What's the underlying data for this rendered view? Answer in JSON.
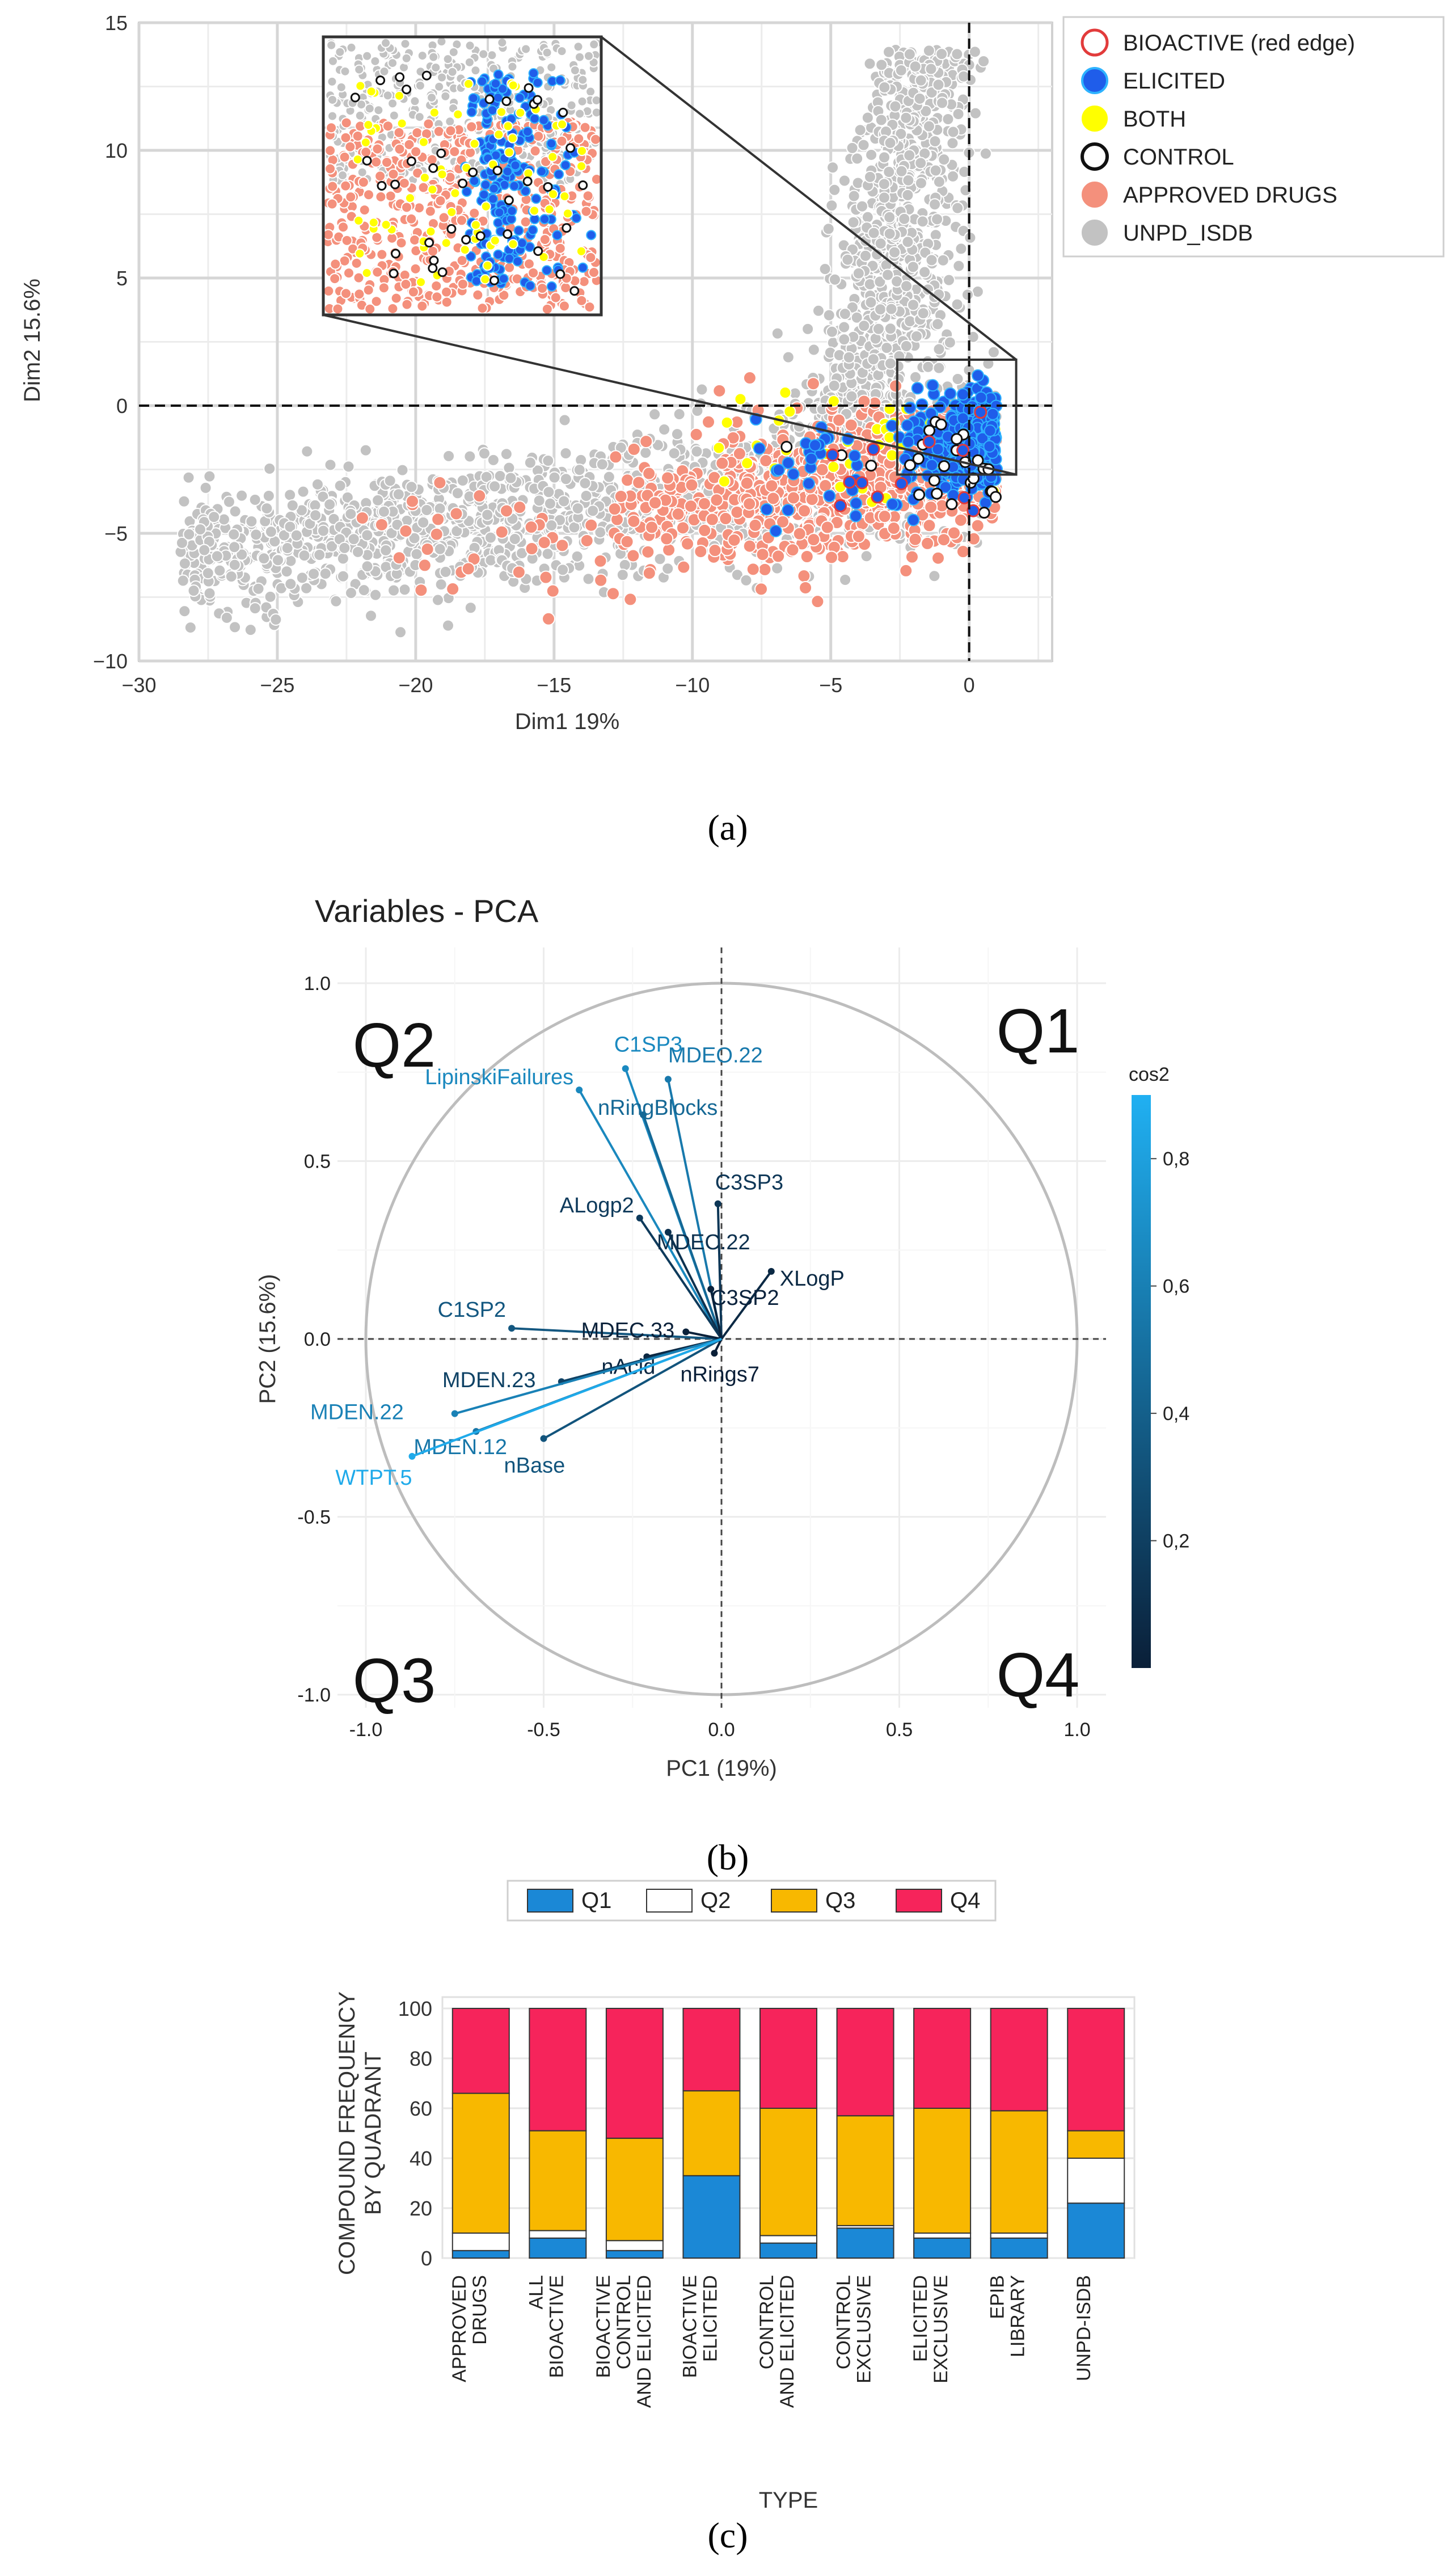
{
  "colors": {
    "unpd": "#c2c2c2",
    "approved": "#f4907c",
    "elicited": "#1f5dea",
    "both": "#ffff00",
    "q1": "#1b88d6",
    "q2": "#ffffff",
    "q3": "#f8b800",
    "q4": "#f6245b"
  },
  "panels": {
    "a": "(a)",
    "b": "(b)",
    "c": "(c)"
  },
  "chart_data": [
    {
      "type": "scatter",
      "xlabel": "Dim1 19%",
      "ylabel": "Dim2 15.6%",
      "xlim": [
        -30,
        3
      ],
      "ylim": [
        -10,
        15
      ],
      "xticks": [
        -30,
        -25,
        -20,
        -15,
        -10,
        -5,
        0
      ],
      "yticks": [
        -10,
        -5,
        0,
        5,
        10,
        15
      ],
      "grid": true,
      "reference_lines": {
        "x": 0,
        "y": 0
      },
      "zoom_box": {
        "x": [
          -2.6,
          1.7
        ],
        "y": [
          -2.7,
          1.8
        ]
      },
      "legend_position": "right",
      "legend": [
        {
          "label": "BIOACTIVE (red edge)",
          "marker": "ring-red"
        },
        {
          "label": "ELICITED",
          "marker": "blue"
        },
        {
          "label": "BOTH",
          "marker": "yellow"
        },
        {
          "label": "CONTROL",
          "marker": "ring-black"
        },
        {
          "label": "APPROVED DRUGS",
          "marker": "salmon"
        },
        {
          "label": "UNPD_ISDB",
          "marker": "grey"
        }
      ]
    },
    {
      "type": "scatter",
      "title": "Variables - PCA",
      "xlabel": "PC1 (19%)",
      "ylabel": "PC2 (15.6%)",
      "xlim": [
        -1.1,
        1.1
      ],
      "ylim": [
        -1.1,
        1.1
      ],
      "xticks": [
        "-1.0",
        "-0.5",
        "0.0",
        "0.5",
        "1.0"
      ],
      "yticks": [
        "-1.0",
        "-0.5",
        "0.0",
        "0.5",
        "1.0"
      ],
      "quadrants": [
        "Q1",
        "Q2",
        "Q3",
        "Q4"
      ],
      "colorbar": {
        "title": "cos2",
        "ticks": [
          "0,8",
          "0,6",
          "0,4",
          "0,2"
        ]
      },
      "variables": [
        {
          "name": "C1SP3",
          "x": -0.27,
          "y": 0.76,
          "cos2": 0.66
        },
        {
          "name": "MDEO.22",
          "x": -0.15,
          "y": 0.73,
          "cos2": 0.56
        },
        {
          "name": "LipinskiFailures",
          "x": -0.4,
          "y": 0.7,
          "cos2": 0.65
        },
        {
          "name": "nRingBlocks",
          "x": -0.22,
          "y": 0.63,
          "cos2": 0.45
        },
        {
          "name": "C3SP3",
          "x": -0.01,
          "y": 0.38,
          "cos2": 0.15
        },
        {
          "name": "ALogp2",
          "x": -0.23,
          "y": 0.34,
          "cos2": 0.17
        },
        {
          "name": "MDEC.22",
          "x": -0.15,
          "y": 0.3,
          "cos2": 0.11
        },
        {
          "name": "XLogP",
          "x": 0.14,
          "y": 0.19,
          "cos2": 0.06
        },
        {
          "name": "C3SP2",
          "x": -0.03,
          "y": 0.14,
          "cos2": 0.02
        },
        {
          "name": "C1SP2",
          "x": -0.59,
          "y": 0.03,
          "cos2": 0.35
        },
        {
          "name": "MDEC.33",
          "x": -0.1,
          "y": 0.02,
          "cos2": 0.01
        },
        {
          "name": "nRings7",
          "x": -0.02,
          "y": -0.04,
          "cos2": 0.002
        },
        {
          "name": "nAcid",
          "x": -0.21,
          "y": -0.05,
          "cos2": 0.05
        },
        {
          "name": "MDEN.23",
          "x": -0.45,
          "y": -0.12,
          "cos2": 0.22
        },
        {
          "name": "MDEN.22",
          "x": -0.75,
          "y": -0.21,
          "cos2": 0.61
        },
        {
          "name": "MDEN.12",
          "x": -0.69,
          "y": -0.26,
          "cos2": 0.54
        },
        {
          "name": "nBase",
          "x": -0.5,
          "y": -0.28,
          "cos2": 0.33
        },
        {
          "name": "WTPT.5",
          "x": -0.87,
          "y": -0.33,
          "cos2": 0.86
        }
      ]
    },
    {
      "type": "bar",
      "stacked": true,
      "xlabel": "TYPE",
      "ylabel": "COMPOUND FREQUENCY BY QUADRANT",
      "ylim": [
        0,
        100
      ],
      "yticks": [
        0,
        20,
        40,
        60,
        80,
        100
      ],
      "legend_position": "top",
      "categories": [
        "APPROVED DRUGS",
        "ALL BIOACTIVE",
        "BIOACTIVE CONTROL AND ELICITED",
        "BIOACTIVE ELICITED",
        "CONTROL AND ELICITED",
        "CONTROL EXCLUSIVE",
        "ELICITED EXCLUSIVE",
        "EPIB LIBRARY",
        "UNPD-ISDB"
      ],
      "series": [
        {
          "name": "Q1",
          "values": [
            3,
            8,
            3,
            33,
            6,
            12,
            8,
            8,
            22
          ]
        },
        {
          "name": "Q2",
          "values": [
            7,
            3,
            4,
            0,
            3,
            1,
            2,
            2,
            18
          ]
        },
        {
          "name": "Q3",
          "values": [
            56,
            40,
            41,
            34,
            51,
            44,
            50,
            49,
            11
          ]
        },
        {
          "name": "Q4",
          "values": [
            34,
            49,
            52,
            33,
            40,
            43,
            40,
            41,
            49
          ]
        }
      ]
    }
  ]
}
